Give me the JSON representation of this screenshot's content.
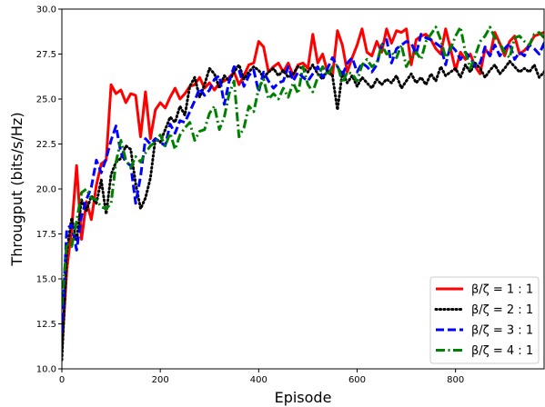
{
  "chart_data": {
    "type": "line",
    "xlabel": "Episode",
    "ylabel": "Througput (bits/s/Hz)",
    "xlim": [
      0,
      980
    ],
    "ylim": [
      10.0,
      30.0
    ],
    "xticks": [
      0,
      200,
      400,
      600,
      800
    ],
    "xtick_labels": [
      "0",
      "200",
      "400",
      "600",
      "800"
    ],
    "yticks": [
      10.0,
      12.5,
      15.0,
      17.5,
      20.0,
      22.5,
      25.0,
      27.5,
      30.0
    ],
    "ytick_labels": [
      "10.0",
      "12.5",
      "15.0",
      "17.5",
      "20.0",
      "22.5",
      "25.0",
      "27.5",
      "30.0"
    ],
    "grid": false,
    "legend_position": "bottom-right",
    "x_step": 10,
    "series": [
      {
        "name": "β/ζ = 1 : 1",
        "color": "#ff0000",
        "dash": "solid",
        "values": [
          11.0,
          15.5,
          17.8,
          21.3,
          17.2,
          19.3,
          18.3,
          20.2,
          21.4,
          21.6,
          25.8,
          25.3,
          25.5,
          24.8,
          25.3,
          25.2,
          22.9,
          25.4,
          22.8,
          24.4,
          24.8,
          24.5,
          25.1,
          25.6,
          25.0,
          25.3,
          25.7,
          25.8,
          26.2,
          25.6,
          25.9,
          25.5,
          25.9,
          26.0,
          26.2,
          26.5,
          25.8,
          26.3,
          26.9,
          27.0,
          28.2,
          27.9,
          26.5,
          26.8,
          27.0,
          26.5,
          27.0,
          26.3,
          26.9,
          27.0,
          26.7,
          28.6,
          27.0,
          27.5,
          26.5,
          26.3,
          28.8,
          28.0,
          26.5,
          27.3,
          28.0,
          28.9,
          27.6,
          27.4,
          28.2,
          27.6,
          28.9,
          28.1,
          28.8,
          28.7,
          28.9,
          26.9,
          28.3,
          28.5,
          28.6,
          28.3,
          27.8,
          27.5,
          28.9,
          27.8,
          26.6,
          27.6,
          27.2,
          27.5,
          26.8,
          26.4,
          27.8,
          27.4,
          28.7,
          28.1,
          27.4,
          28.2,
          28.5,
          27.5,
          27.7,
          28.0,
          28.5,
          28.6,
          28.7,
          28.9
        ]
      },
      {
        "name": "β/ζ = 2 : 1",
        "color": "#000000",
        "dash": "dotted",
        "values": [
          10.5,
          16.5,
          18.4,
          17.1,
          19.4,
          18.8,
          19.6,
          19.2,
          20.5,
          18.6,
          20.8,
          21.5,
          21.7,
          22.4,
          22.2,
          20.3,
          18.9,
          19.5,
          20.6,
          22.8,
          22.6,
          23.3,
          24.0,
          23.7,
          24.6,
          24.1,
          25.7,
          26.2,
          25.1,
          25.8,
          26.7,
          26.4,
          25.6,
          26.3,
          26.0,
          26.5,
          26.9,
          26.1,
          26.5,
          26.8,
          26.6,
          26.2,
          26.5,
          26.7,
          26.3,
          26.6,
          26.2,
          26.4,
          26.8,
          26.7,
          26.5,
          26.9,
          26.4,
          26.1,
          26.6,
          26.3,
          24.4,
          26.5,
          25.9,
          26.3,
          25.7,
          26.2,
          25.9,
          25.6,
          26.1,
          25.8,
          26.1,
          25.9,
          26.3,
          25.6,
          26.0,
          26.4,
          25.9,
          26.2,
          25.8,
          26.4,
          26.0,
          26.8,
          26.3,
          26.5,
          26.7,
          26.2,
          26.9,
          26.5,
          27.0,
          26.7,
          26.2,
          26.6,
          26.9,
          26.4,
          26.7,
          27.1,
          26.8,
          26.5,
          26.7,
          26.5,
          26.9,
          26.2,
          26.5,
          27.1
        ]
      },
      {
        "name": "β/ζ = 3 : 1",
        "color": "#0000ff",
        "dash": "dashed",
        "values": [
          12.0,
          17.8,
          18.0,
          16.6,
          18.5,
          19.4,
          20.1,
          21.6,
          20.9,
          21.7,
          22.7,
          23.5,
          22.0,
          21.5,
          21.3,
          19.2,
          20.7,
          22.8,
          22.5,
          22.8,
          22.6,
          22.4,
          23.6,
          23.1,
          23.8,
          23.7,
          24.3,
          24.9,
          25.6,
          25.2,
          25.5,
          26.1,
          26.3,
          24.7,
          26.0,
          26.8,
          26.6,
          25.7,
          26.3,
          26.6,
          25.4,
          26.5,
          26.0,
          25.6,
          25.9,
          26.0,
          26.8,
          26.0,
          26.5,
          26.2,
          26.0,
          26.4,
          26.8,
          26.2,
          26.7,
          27.3,
          26.8,
          26.3,
          27.0,
          27.3,
          26.5,
          27.0,
          26.8,
          26.5,
          26.9,
          28.0,
          28.3,
          27.0,
          27.8,
          28.0,
          28.2,
          28.1,
          27.5,
          28.6,
          28.4,
          28.3,
          28.1,
          27.9,
          26.9,
          28.0,
          27.7,
          27.2,
          27.6,
          27.3,
          26.8,
          27.0,
          27.9,
          27.4,
          28.0,
          27.4,
          27.8,
          28.1,
          27.2,
          27.6,
          27.4,
          28.0,
          27.8,
          27.5,
          28.1,
          27.8
        ]
      },
      {
        "name": "β/ζ = 4 : 1",
        "color": "#008000",
        "dash": "dashdot",
        "values": [
          13.5,
          17.0,
          16.8,
          18.2,
          19.8,
          20.0,
          19.5,
          19.4,
          19.0,
          18.9,
          19.2,
          21.5,
          22.7,
          21.6,
          21.2,
          21.8,
          21.5,
          22.0,
          22.4,
          22.6,
          23.0,
          22.4,
          23.1,
          22.2,
          23.0,
          23.4,
          23.7,
          22.7,
          23.2,
          23.3,
          24.2,
          24.6,
          23.3,
          24.0,
          25.3,
          26.0,
          22.9,
          23.4,
          24.6,
          24.3,
          25.6,
          26.1,
          25.0,
          25.3,
          25.0,
          25.6,
          25.1,
          25.9,
          25.3,
          26.8,
          25.8,
          25.4,
          26.2,
          26.8,
          26.3,
          26.8,
          26.9,
          25.9,
          26.5,
          26.4,
          26.0,
          26.9,
          27.2,
          26.8,
          27.0,
          28.0,
          27.5,
          27.6,
          27.3,
          28.0,
          26.8,
          27.3,
          27.6,
          27.2,
          28.2,
          28.6,
          29.0,
          28.3,
          27.3,
          27.8,
          28.5,
          29.0,
          27.6,
          26.7,
          27.4,
          28.2,
          28.5,
          29.0,
          28.4,
          28.1,
          27.6,
          27.3,
          28.4,
          28.5,
          28.2,
          28.0,
          28.6,
          28.7,
          28.4,
          27.8
        ]
      }
    ]
  }
}
